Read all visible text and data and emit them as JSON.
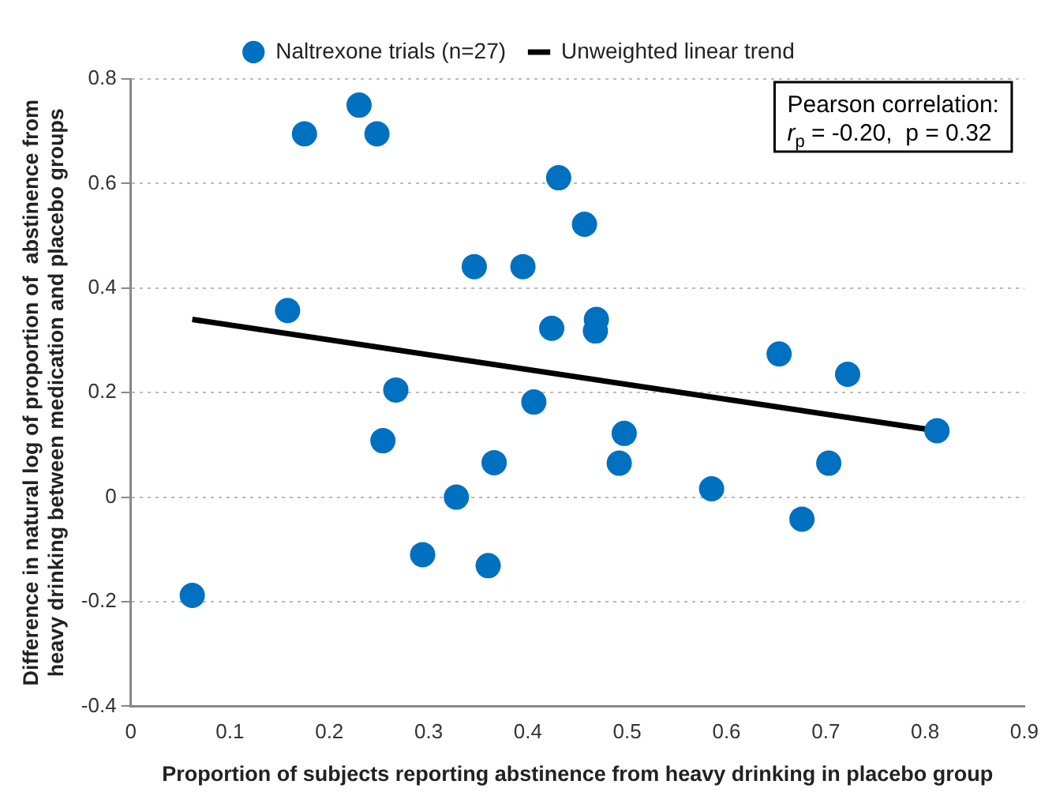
{
  "chart_data": {
    "type": "scatter",
    "xlabel": "Proportion of subjects reporting abstinence from heavy drinking in placebo group",
    "ylabel": "Difference in natural log of proportion of  abstinence from\nheavy drinking between medication and placebo groups",
    "annotations": [
      "Pearson correlation:\nr$_{p}$ = -0.20,  p = 0.32"
    ],
    "series": [
      {
        "name": "Naltrexone trials (n=27)",
        "type": "scatter",
        "marker": "circle",
        "color": "#0070c0",
        "x": [
          0.175,
          0.23,
          0.248,
          0.431,
          0.346,
          0.395,
          0.158,
          0.424,
          0.267,
          0.406,
          0.457,
          0.469,
          0.468,
          0.653,
          0.722,
          0.254,
          0.366,
          0.328,
          0.294,
          0.36,
          0.062,
          0.497,
          0.492,
          0.585,
          0.676,
          0.703,
          0.812
        ],
        "values": [
          0.695,
          0.75,
          0.695,
          0.611,
          0.441,
          0.441,
          0.357,
          0.323,
          0.205,
          0.182,
          0.522,
          0.34,
          0.318,
          0.274,
          0.235,
          0.108,
          0.066,
          0.0,
          -0.11,
          -0.131,
          -0.188,
          0.122,
          0.065,
          0.016,
          -0.042,
          0.065,
          0.127
        ]
      },
      {
        "name": "Unweighted linear trend",
        "type": "line",
        "marker": "none",
        "color": "#000000",
        "x": [
          0.062,
          0.812
        ],
        "values": [
          0.34,
          0.127
        ]
      }
    ],
    "xlim": [
      0,
      0.9
    ],
    "xticks": [
      0,
      0.1,
      0.2,
      0.3,
      0.4,
      0.5,
      0.6,
      0.7,
      0.8,
      0.9
    ],
    "ylim": [
      -0.4,
      0.8
    ],
    "yticks": [
      -0.4,
      -0.2,
      0,
      0.2,
      0.4,
      0.6,
      0.8
    ],
    "grid": "y",
    "legend": "top"
  }
}
